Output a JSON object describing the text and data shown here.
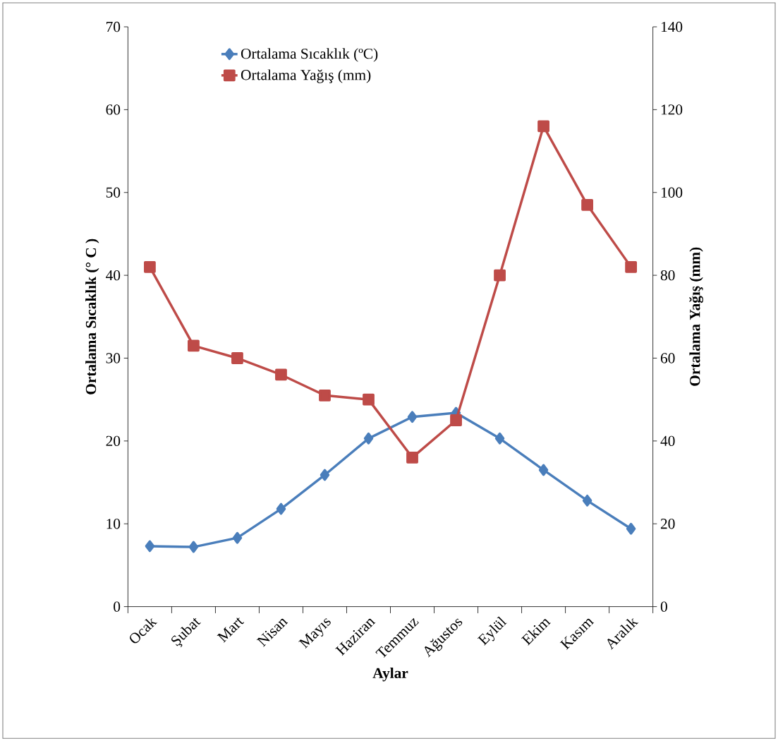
{
  "chart_data": {
    "type": "line",
    "xlabel": "Aylar",
    "ylabel": "Ortalama Sıcaklık (° C )",
    "y2label": "Ortalama Yağış (mm)",
    "categories": [
      "Ocak",
      "Şubat",
      "Mart",
      "Nisan",
      "Mayıs",
      "Haziran",
      "Temmuz",
      "Ağustos",
      "Eylül",
      "Ekim",
      "Kasım",
      "Aralık"
    ],
    "series": [
      {
        "name": "Ortalama Sıcaklık (ºC)",
        "color": "#4a7ebb",
        "marker": "diamond",
        "values": [
          7.3,
          7.2,
          8.3,
          11.8,
          15.9,
          20.3,
          22.9,
          23.4,
          20.3,
          16.5,
          12.8,
          9.4
        ]
      },
      {
        "name": "Ortalama Yağış (mm)",
        "color": "#be4b48",
        "marker": "square",
        "axis": "y2",
        "values": [
          82,
          63,
          60,
          56,
          51,
          50,
          36,
          45,
          80,
          116,
          97,
          82
        ]
      }
    ],
    "ylim": [
      0,
      70
    ],
    "yticks": [
      0,
      10,
      20,
      30,
      40,
      50,
      60,
      70
    ],
    "y2lim": [
      0,
      140
    ],
    "y2ticks": [
      0,
      20,
      40,
      60,
      80,
      100,
      120,
      140
    ],
    "grid": false,
    "legend": "top left",
    "line_style": "solid"
  }
}
